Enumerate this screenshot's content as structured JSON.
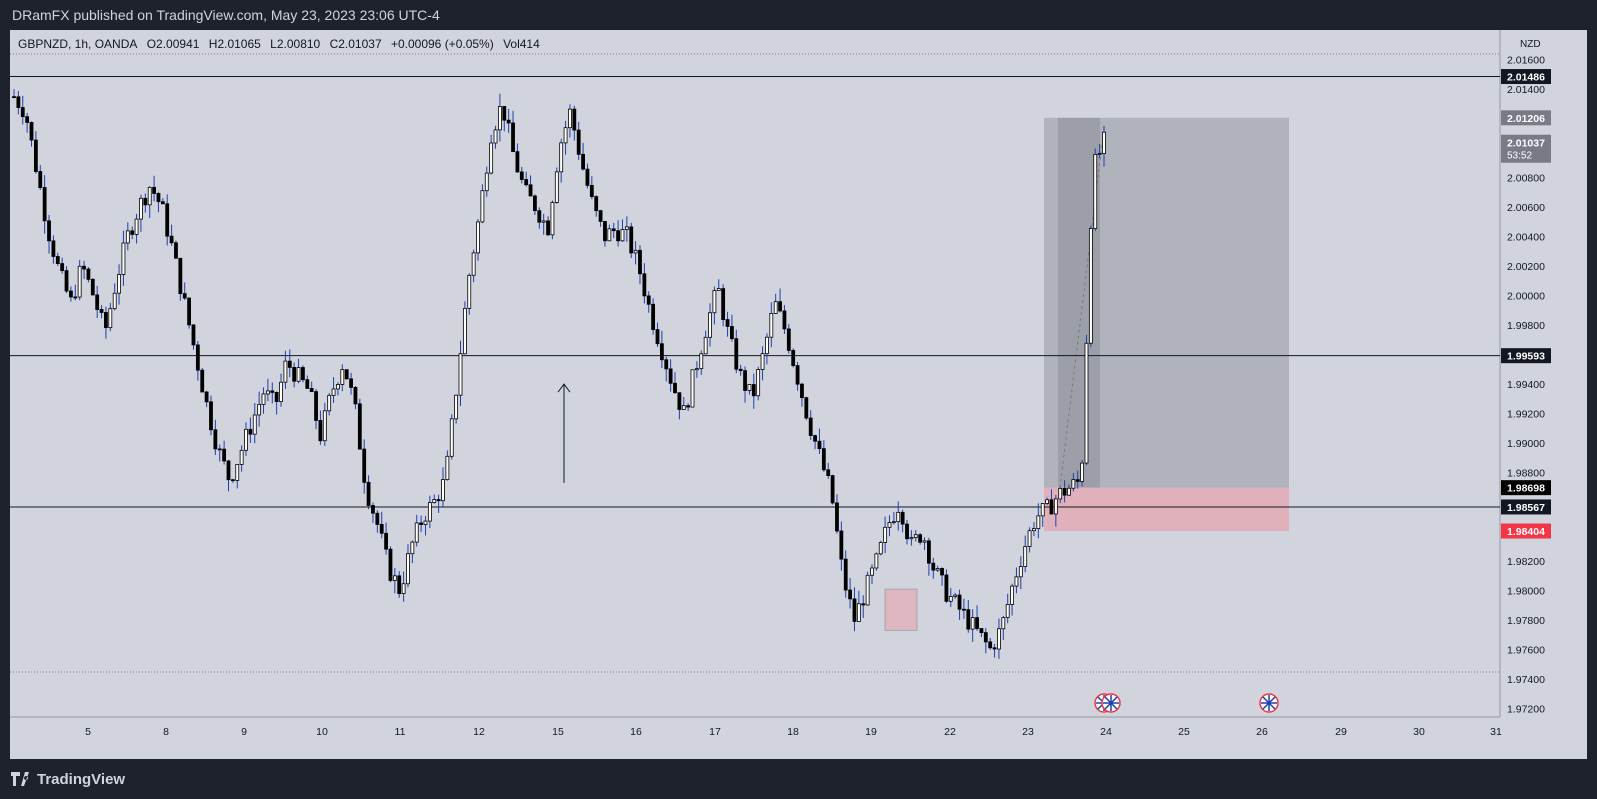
{
  "header": {
    "published_text": "DRamFX published on TradingView.com, May 23, 2023 23:06 UTC-4"
  },
  "legend": {
    "symbol": "GBPNZD, 1h, OANDA",
    "open": "O2.00941",
    "high": "H2.01065",
    "low": "L2.00810",
    "close": "C2.01037",
    "change": "+0.00096 (+0.05%)",
    "volume": "Vol414"
  },
  "footer": {
    "brand": "TradingView"
  },
  "colors": {
    "chart_bg": "#d1d4dc",
    "candle": "#000000",
    "wick": "#1e3fb0",
    "target_zone": "#9598a1",
    "stop_zone": "#e8a3ad",
    "stop_label": "#f23645",
    "frame": "#1e222d"
  },
  "chart_data": {
    "type": "candlestick",
    "symbol": "GBPNZD",
    "timeframe": "1h",
    "currency": "NZD",
    "ylim": [
      1.971,
      2.0175
    ],
    "x_ticks": [
      "5",
      "8",
      "9",
      "10",
      "11",
      "12",
      "15",
      "16",
      "17",
      "18",
      "19",
      "22",
      "23",
      "24",
      "25",
      "26",
      "29",
      "30",
      "31"
    ],
    "y_ticks": [
      "2.01600",
      "2.01400",
      "2.00800",
      "2.00600",
      "2.00400",
      "2.00200",
      "2.00000",
      "1.99800",
      "1.99400",
      "1.99200",
      "1.99000",
      "1.98800",
      "1.98200",
      "1.98000",
      "1.97800",
      "1.97600",
      "1.97400",
      "1.97200"
    ],
    "horizontal_levels": [
      2.01486,
      1.99593,
      1.98567
    ],
    "price_labels": [
      {
        "value": 2.01486,
        "text": "2.01486",
        "kind": "level"
      },
      {
        "value": 2.01206,
        "text": "2.01206",
        "kind": "target"
      },
      {
        "value": 2.01037,
        "text": "2.01037",
        "sub": "53:52",
        "kind": "last"
      },
      {
        "value": 1.99593,
        "text": "1.99593",
        "kind": "level"
      },
      {
        "value": 1.98698,
        "text": "1.98698",
        "kind": "entry"
      },
      {
        "value": 1.98567,
        "text": "1.98567",
        "kind": "level"
      },
      {
        "value": 1.98404,
        "text": "1.98404",
        "kind": "stop"
      }
    ],
    "position": {
      "entry": 1.98698,
      "target": 2.01206,
      "stop": 1.98404
    },
    "close_path": [
      2.0135,
      2.0125,
      2.0085,
      2.0045,
      2.0015,
      1.9995,
      2.002,
      2.0,
      1.9975,
      2.001,
      2.004,
      2.006,
      2.0075,
      2.006,
      2.003,
      1.9995,
      1.996,
      1.9925,
      1.9895,
      1.9875,
      1.9895,
      1.9915,
      1.9935,
      1.9925,
      1.9955,
      1.9945,
      1.9935,
      1.9905,
      1.9935,
      1.9955,
      1.9925,
      1.987,
      1.9845,
      1.9815,
      1.98,
      1.983,
      1.985,
      1.986,
      1.9875,
      1.994,
      2.001,
      2.0055,
      2.011,
      2.013,
      2.0095,
      2.007,
      2.006,
      2.0045,
      2.01,
      2.0125,
      2.009,
      2.006,
      2.004,
      2.0045,
      2.004,
      2.002,
      1.999,
      1.9965,
      1.994,
      1.992,
      1.995,
      1.998,
      2.0005,
      1.997,
      1.9945,
      1.993,
      1.996,
      1.9995,
      1.9975,
      1.9945,
      1.9915,
      1.989,
      1.9865,
      1.981,
      1.978,
      1.98,
      1.982,
      1.9845,
      1.986,
      1.983,
      1.984,
      1.9815,
      1.98,
      1.979,
      1.978,
      1.977,
      1.976,
      1.9775,
      1.9805,
      1.983,
      1.985,
      1.9855,
      1.9865,
      1.987,
      1.9875,
      2.0085,
      2.0104
    ],
    "annotations": [
      {
        "type": "arrow-up",
        "from": 1.9873,
        "to": 1.994
      },
      {
        "type": "box",
        "low": 1.9773,
        "high": 1.9801
      },
      {
        "type": "rr-position",
        "entry": 1.98698,
        "target": 2.01206,
        "stop": 1.98404
      }
    ]
  }
}
